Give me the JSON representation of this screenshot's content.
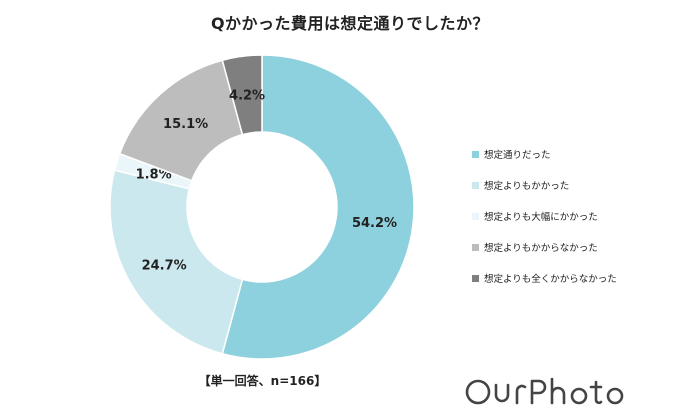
{
  "title": "Qかかった費用は想定通りでしたか？",
  "note": "【単一回答、n=166】",
  "brand": {
    "logo_text": "OurPhoto"
  },
  "chart_data": {
    "type": "pie",
    "donut": true,
    "title": "Qかかった費用は想定通りでしたか？",
    "legend_position": "right",
    "start": "top, clockwise",
    "slices": [
      {
        "label": "想定通りだった",
        "value": 54.2,
        "value_label": "54.2%",
        "color": "#8ed1de"
      },
      {
        "label": "想定よりもかかった",
        "value": 24.7,
        "value_label": "24.7%",
        "color": "#cbe8ee"
      },
      {
        "label": "想定よりも大幅にかかった",
        "value": 1.8,
        "value_label": "1.8%",
        "color": "#eaf6f9"
      },
      {
        "label": "想定よりもかからなかった",
        "value": 15.1,
        "value_label": "15.1%",
        "color": "#bdbdbd"
      },
      {
        "label": "想定よりも全くかからなかった",
        "value": 4.2,
        "value_label": "4.2%",
        "color": "#7f7f7f"
      }
    ]
  }
}
